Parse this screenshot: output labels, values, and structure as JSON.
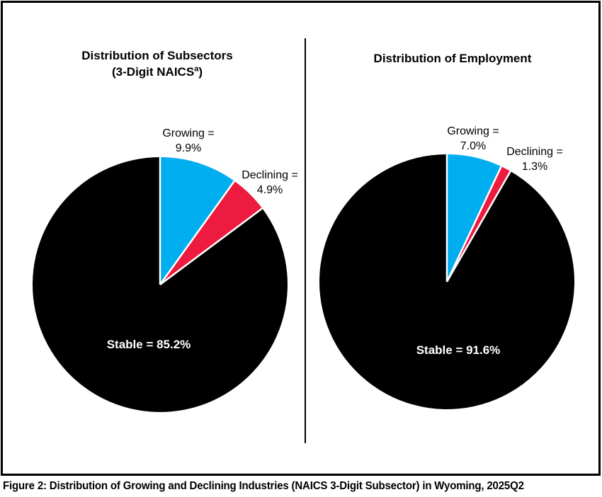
{
  "figure": {
    "caption": "Figure 2: Distribution of Growing and Declining Industries (NAICS 3-Digit Subsector) in Wyoming, 2025Q2"
  },
  "colors": {
    "growing": "#00AEEF",
    "declining": "#EC1B3F",
    "stable": "#000000",
    "separator": "#FFFFFF",
    "border": "#000000"
  },
  "chart_data": [
    {
      "type": "pie",
      "title_line1": "Distribution of Subsectors",
      "title_line2_pre": "(3-Digit NAICS",
      "title_line2_sup": "a",
      "title_line2_post": ")",
      "categories": [
        "Growing",
        "Declining",
        "Stable"
      ],
      "values": [
        9.9,
        4.9,
        85.2
      ],
      "unit": "%",
      "start_angle_deg": 0,
      "direction": "clockwise",
      "legend": "none",
      "slice_colors": [
        "#00AEEF",
        "#EC1B3F",
        "#000000"
      ],
      "labels": {
        "growing_line1": "Growing =",
        "growing_line2": "9.9%",
        "declining_line1": "Declining =",
        "declining_line2": "4.9%",
        "stable": "Stable = 85.2%"
      }
    },
    {
      "type": "pie",
      "title_line1": "Distribution of Employment",
      "categories": [
        "Growing",
        "Declining",
        "Stable"
      ],
      "values": [
        7.0,
        1.3,
        91.6
      ],
      "unit": "%",
      "start_angle_deg": 0,
      "direction": "clockwise",
      "legend": "none",
      "slice_colors": [
        "#00AEEF",
        "#EC1B3F",
        "#000000"
      ],
      "labels": {
        "growing_line1": "Growing =",
        "growing_line2": "7.0%",
        "declining_line1": "Declining =",
        "declining_line2": "1.3%",
        "stable": "Stable = 91.6%"
      }
    }
  ]
}
